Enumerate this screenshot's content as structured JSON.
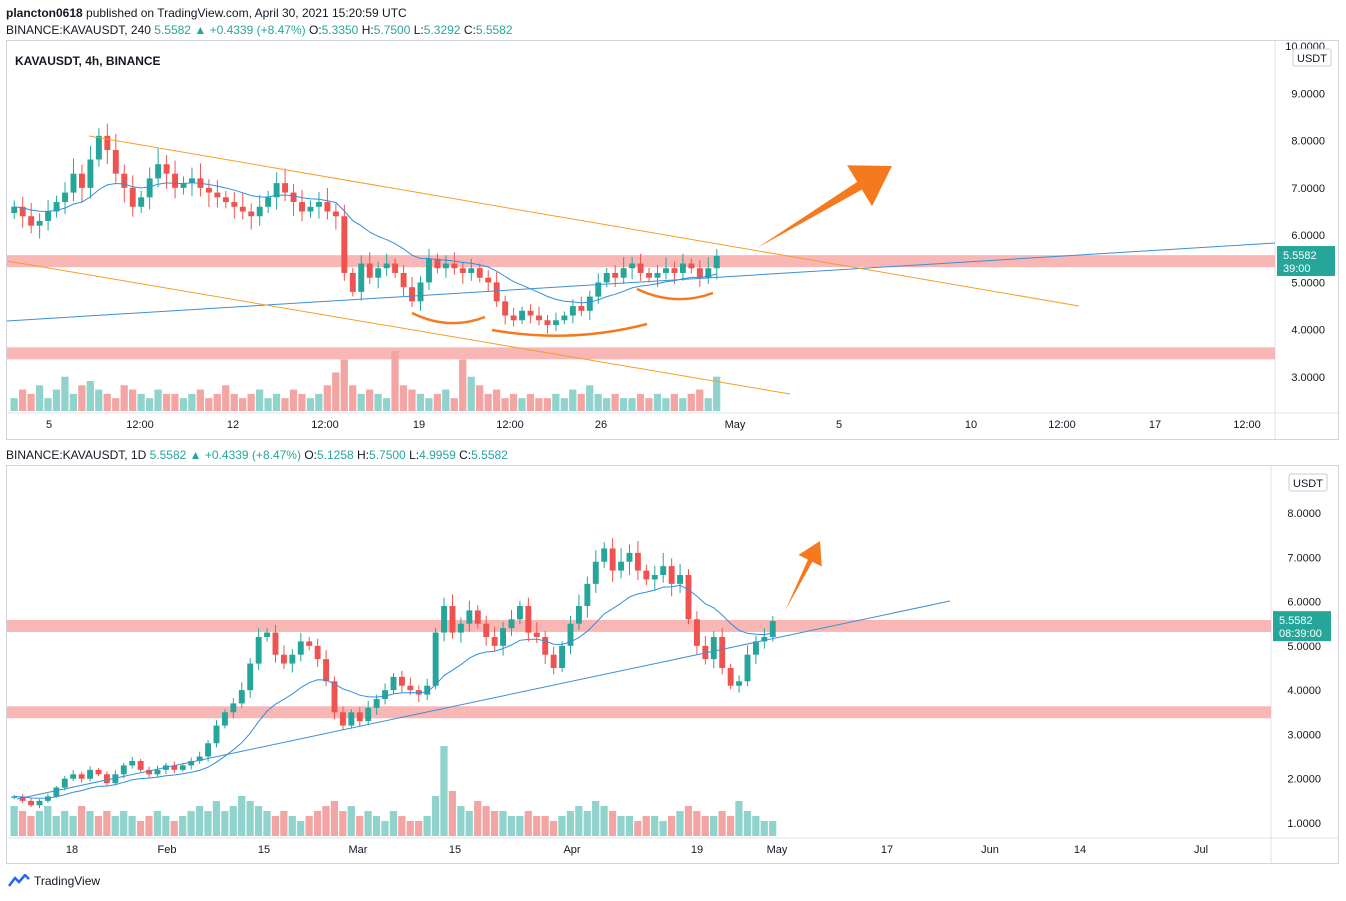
{
  "header": {
    "publisher": "plancton0618",
    "published_text": "published on TradingView.com, April 30, 2021 15:20:59 UTC",
    "line2": {
      "symbol": "BINANCE:KAVAUSDT, 240",
      "last": "5.5582",
      "change": "+0.4339 (+8.47%)",
      "o": "5.3350",
      "h": "5.7500",
      "l": "5.3292",
      "c": "5.5582",
      "o_label": "O:",
      "h_label": "H:",
      "l_label": "L:",
      "c_label": "C:"
    }
  },
  "footer": {
    "brand": "TradingView"
  },
  "colors": {
    "up": "#26a69a",
    "down": "#ef5350",
    "zone": "#f7a9a8",
    "channel": "#f59d2a",
    "trend": "#3d8fd6",
    "ma": "#2f8fe0",
    "arrow": "#f57a1f",
    "vol_up": "#8fd3cc",
    "vol_down": "#f3a5a3",
    "price_badge": "#26a69a"
  },
  "chart_data": [
    {
      "type": "candlestick",
      "title": "KAVAUSDT, 4h, BINANCE",
      "timeframe": "4h",
      "currency": "USDT",
      "y_ticks": [
        "10.0000",
        "9.0000",
        "8.0000",
        "7.0000",
        "6.0000",
        "5.0000",
        "4.0000",
        "3.0000"
      ],
      "ylim": [
        2.35,
        10.0
      ],
      "x_labels": [
        "5",
        "12:00",
        "12",
        "12:00",
        "19",
        "12:00",
        "26",
        "May",
        "5",
        "10",
        "12:00",
        "17",
        "12:00"
      ],
      "last_price": "5.5582",
      "countdown": "39:00",
      "ohlc_path": [
        6.6,
        6.4,
        6.2,
        6.3,
        6.5,
        6.7,
        6.9,
        7.3,
        7.0,
        7.6,
        8.1,
        7.8,
        7.3,
        7.0,
        6.6,
        6.8,
        7.2,
        7.5,
        7.3,
        7.0,
        7.1,
        7.2,
        7.0,
        6.9,
        6.8,
        6.7,
        6.6,
        6.5,
        6.4,
        6.6,
        6.8,
        7.1,
        6.9,
        6.7,
        6.5,
        6.6,
        6.7,
        6.5,
        6.4,
        5.2,
        4.8,
        5.4,
        5.1,
        5.3,
        5.4,
        5.2,
        4.9,
        4.6,
        5.0,
        5.5,
        5.3,
        5.4,
        5.3,
        5.2,
        5.3,
        5.1,
        5.0,
        4.6,
        4.3,
        4.2,
        4.4,
        4.3,
        4.2,
        4.1,
        4.2,
        4.3,
        4.5,
        4.4,
        4.7,
        5.0,
        5.2,
        5.1,
        5.3,
        5.4,
        5.2,
        5.1,
        5.2,
        5.3,
        5.2,
        5.4,
        5.3,
        5.1,
        5.3,
        5.56
      ],
      "volume": [
        3,
        5,
        4,
        6,
        3,
        5,
        8,
        4,
        6,
        7,
        5,
        4,
        3,
        6,
        5,
        4,
        3,
        5,
        4,
        4,
        3,
        4,
        5,
        3,
        4,
        6,
        4,
        3,
        4,
        5,
        3,
        4,
        3,
        5,
        4,
        3,
        4,
        6,
        9,
        12,
        6,
        4,
        5,
        4,
        3,
        14,
        6,
        5,
        4,
        3,
        4,
        5,
        3,
        12,
        8,
        6,
        4,
        5,
        3,
        4,
        3,
        4,
        3,
        3,
        4,
        3,
        5,
        4,
        6,
        4,
        3,
        4,
        3,
        3,
        4,
        3,
        4,
        3,
        4,
        3,
        4,
        5,
        3,
        8
      ],
      "zones": [
        5.45,
        3.5
      ],
      "annotations": [
        "descending channel",
        "support/resistance zones",
        "rising trendline",
        "inverse head and shoulders",
        "breakout arrow"
      ]
    },
    {
      "type": "candlestick",
      "title": "BINANCE:KAVAUSDT, 1D",
      "header_values": {
        "symbol": "BINANCE:KAVAUSDT, 1D",
        "last": "5.5582",
        "change": "+0.4339 (+8.47%)",
        "o": "5.1258",
        "h": "5.7500",
        "l": "4.9959",
        "c": "5.5582",
        "o_label": "O:",
        "h_label": "H:",
        "l_label": "L:",
        "c_label": "C:"
      },
      "timeframe": "1D",
      "currency": "USDT",
      "y_ticks": [
        "8.0000",
        "7.0000",
        "6.0000",
        "5.0000",
        "4.0000",
        "3.0000",
        "2.0000",
        "1.0000"
      ],
      "ylim": [
        0.7,
        8.8
      ],
      "x_labels": [
        "18",
        "Feb",
        "15",
        "Mar",
        "15",
        "Apr",
        "19",
        "May",
        "17",
        "Jun",
        "14",
        "Jul"
      ],
      "last_price": "5.5582",
      "countdown": "08:39:00",
      "ohlc_path": [
        1.6,
        1.5,
        1.4,
        1.5,
        1.6,
        1.8,
        2.0,
        2.1,
        2.0,
        2.2,
        2.1,
        1.9,
        2.1,
        2.3,
        2.4,
        2.2,
        2.1,
        2.2,
        2.3,
        2.2,
        2.3,
        2.4,
        2.5,
        2.8,
        3.2,
        3.5,
        3.7,
        4.0,
        4.6,
        5.2,
        5.3,
        4.8,
        4.6,
        4.8,
        5.1,
        5.0,
        4.7,
        4.2,
        3.5,
        3.2,
        3.5,
        3.3,
        3.6,
        3.8,
        4.0,
        4.3,
        4.1,
        4.0,
        3.9,
        4.1,
        5.3,
        5.9,
        5.3,
        5.5,
        5.8,
        5.5,
        5.2,
        5.0,
        5.4,
        5.6,
        5.9,
        5.3,
        5.2,
        4.8,
        4.5,
        5.0,
        5.5,
        5.9,
        6.4,
        6.9,
        7.2,
        6.7,
        6.9,
        7.1,
        6.7,
        6.5,
        6.6,
        6.8,
        6.4,
        6.6,
        5.6,
        5.0,
        4.7,
        5.2,
        4.5,
        4.1,
        4.2,
        4.8,
        5.1,
        5.2,
        5.56
      ],
      "volume": [
        6,
        5,
        4,
        5,
        6,
        4,
        5,
        4,
        6,
        5,
        4,
        5,
        4,
        5,
        4,
        3,
        4,
        5,
        4,
        3,
        4,
        5,
        6,
        5,
        7,
        5,
        6,
        8,
        7,
        6,
        5,
        4,
        5,
        4,
        3,
        4,
        5,
        6,
        7,
        5,
        6,
        4,
        5,
        4,
        3,
        5,
        4,
        3,
        3,
        4,
        8,
        18,
        9,
        6,
        5,
        7,
        6,
        5,
        5,
        4,
        4,
        5,
        4,
        4,
        3,
        4,
        5,
        6,
        5,
        7,
        6,
        5,
        4,
        4,
        3,
        4,
        4,
        3,
        4,
        5,
        6,
        5,
        4,
        4,
        5,
        4,
        7,
        5,
        4,
        3,
        3
      ],
      "zones": [
        5.45,
        3.5
      ],
      "annotations": [
        "rising trendline",
        "support/resistance zones",
        "breakout arrow"
      ]
    }
  ]
}
